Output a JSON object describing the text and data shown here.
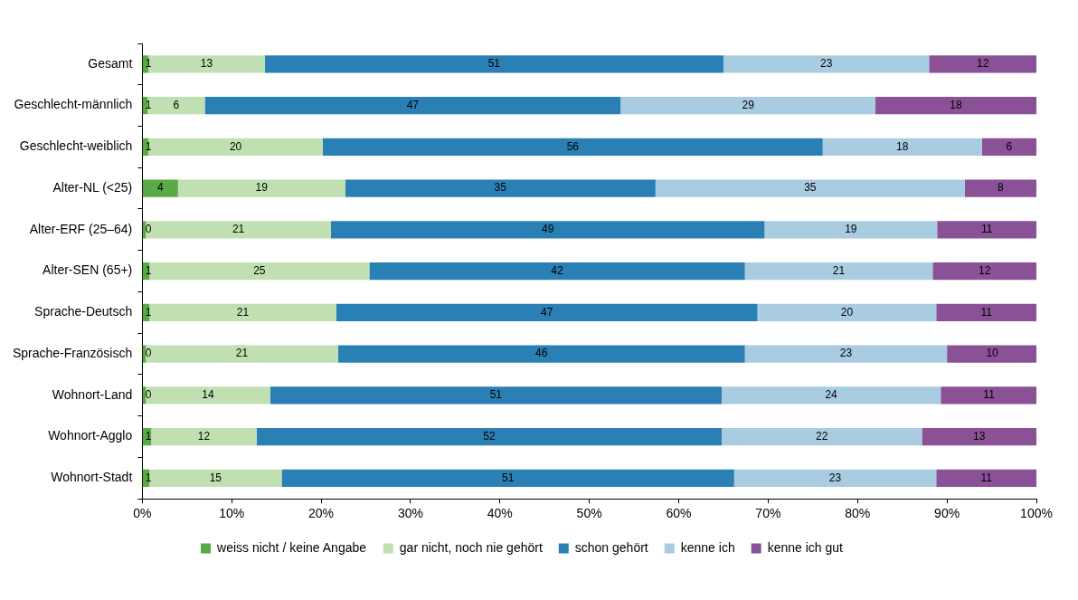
{
  "chart_data": {
    "type": "bar",
    "orientation": "horizontal",
    "stacked": true,
    "categories": [
      "Gesamt",
      "Geschlecht-männlich",
      "Geschlecht-weiblich",
      "Alter-NL (<25)",
      "Alter-ERF (25–64)",
      "Alter-SEN (65+)",
      "Sprache-Deutsch",
      "Sprache-Französisch",
      "Wohnort-Land",
      "Wohnort-Agglo",
      "Wohnort-Stadt"
    ],
    "series": [
      {
        "name": "weiss nicht / keine Angabe",
        "color": "#5aaa46",
        "values": [
          0.7,
          0.6,
          0.7,
          4.0,
          0.4,
          0.8,
          0.8,
          0.4,
          0.4,
          1.0,
          0.8
        ],
        "value_labels": [
          "1",
          "1",
          "1",
          "4",
          "0",
          "1",
          "1",
          "0",
          "0",
          "1",
          "1"
        ]
      },
      {
        "name": "gar nicht, noch nie gehört",
        "color": "#c0e0b2",
        "values": [
          13.0,
          6.4,
          19.5,
          18.7,
          20.7,
          24.6,
          20.9,
          21.5,
          13.9,
          11.8,
          14.8
        ],
        "value_labels": [
          "13",
          "6",
          "20",
          "19",
          "21",
          "25",
          "21",
          "21",
          "14",
          "12",
          "15"
        ]
      },
      {
        "name": "schon gehört",
        "color": "#2a80b4",
        "values": [
          51.3,
          46.5,
          55.9,
          34.7,
          48.5,
          42.0,
          47.1,
          45.5,
          50.5,
          52.0,
          50.6
        ],
        "value_labels": [
          "51",
          "47",
          "56",
          "35",
          "49",
          "42",
          "47",
          "46",
          "51",
          "52",
          "51"
        ]
      },
      {
        "name": "kenne ich",
        "color": "#a9cce1",
        "values": [
          23.0,
          28.5,
          17.8,
          34.6,
          19.3,
          21.0,
          20.0,
          22.6,
          24.5,
          22.4,
          22.6
        ],
        "value_labels": [
          "23",
          "29",
          "18",
          "35",
          "19",
          "21",
          "20",
          "23",
          "24",
          "22",
          "23"
        ]
      },
      {
        "name": "kenne ich gut",
        "color": "#8a5196",
        "values": [
          12.0,
          18.0,
          6.1,
          8.0,
          11.1,
          11.6,
          11.2,
          10.1,
          10.8,
          12.8,
          11.2
        ],
        "value_labels": [
          "12",
          "18",
          "6",
          "8",
          "11",
          "12",
          "11",
          "10",
          "11",
          "13",
          "11"
        ]
      }
    ],
    "xlim": [
      0,
      100
    ],
    "xticks": [
      {
        "value": 0,
        "label": "0%"
      },
      {
        "value": 10,
        "label": "10%"
      },
      {
        "value": 20,
        "label": "20%"
      },
      {
        "value": 30,
        "label": "30%"
      },
      {
        "value": 40,
        "label": "40%"
      },
      {
        "value": 50,
        "label": "50%"
      },
      {
        "value": 60,
        "label": "60%"
      },
      {
        "value": 70,
        "label": "70%"
      },
      {
        "value": 80,
        "label": "80%"
      },
      {
        "value": 90,
        "label": "90%"
      },
      {
        "value": 100,
        "label": "100%"
      }
    ],
    "grid": false,
    "legend": "bottom"
  }
}
